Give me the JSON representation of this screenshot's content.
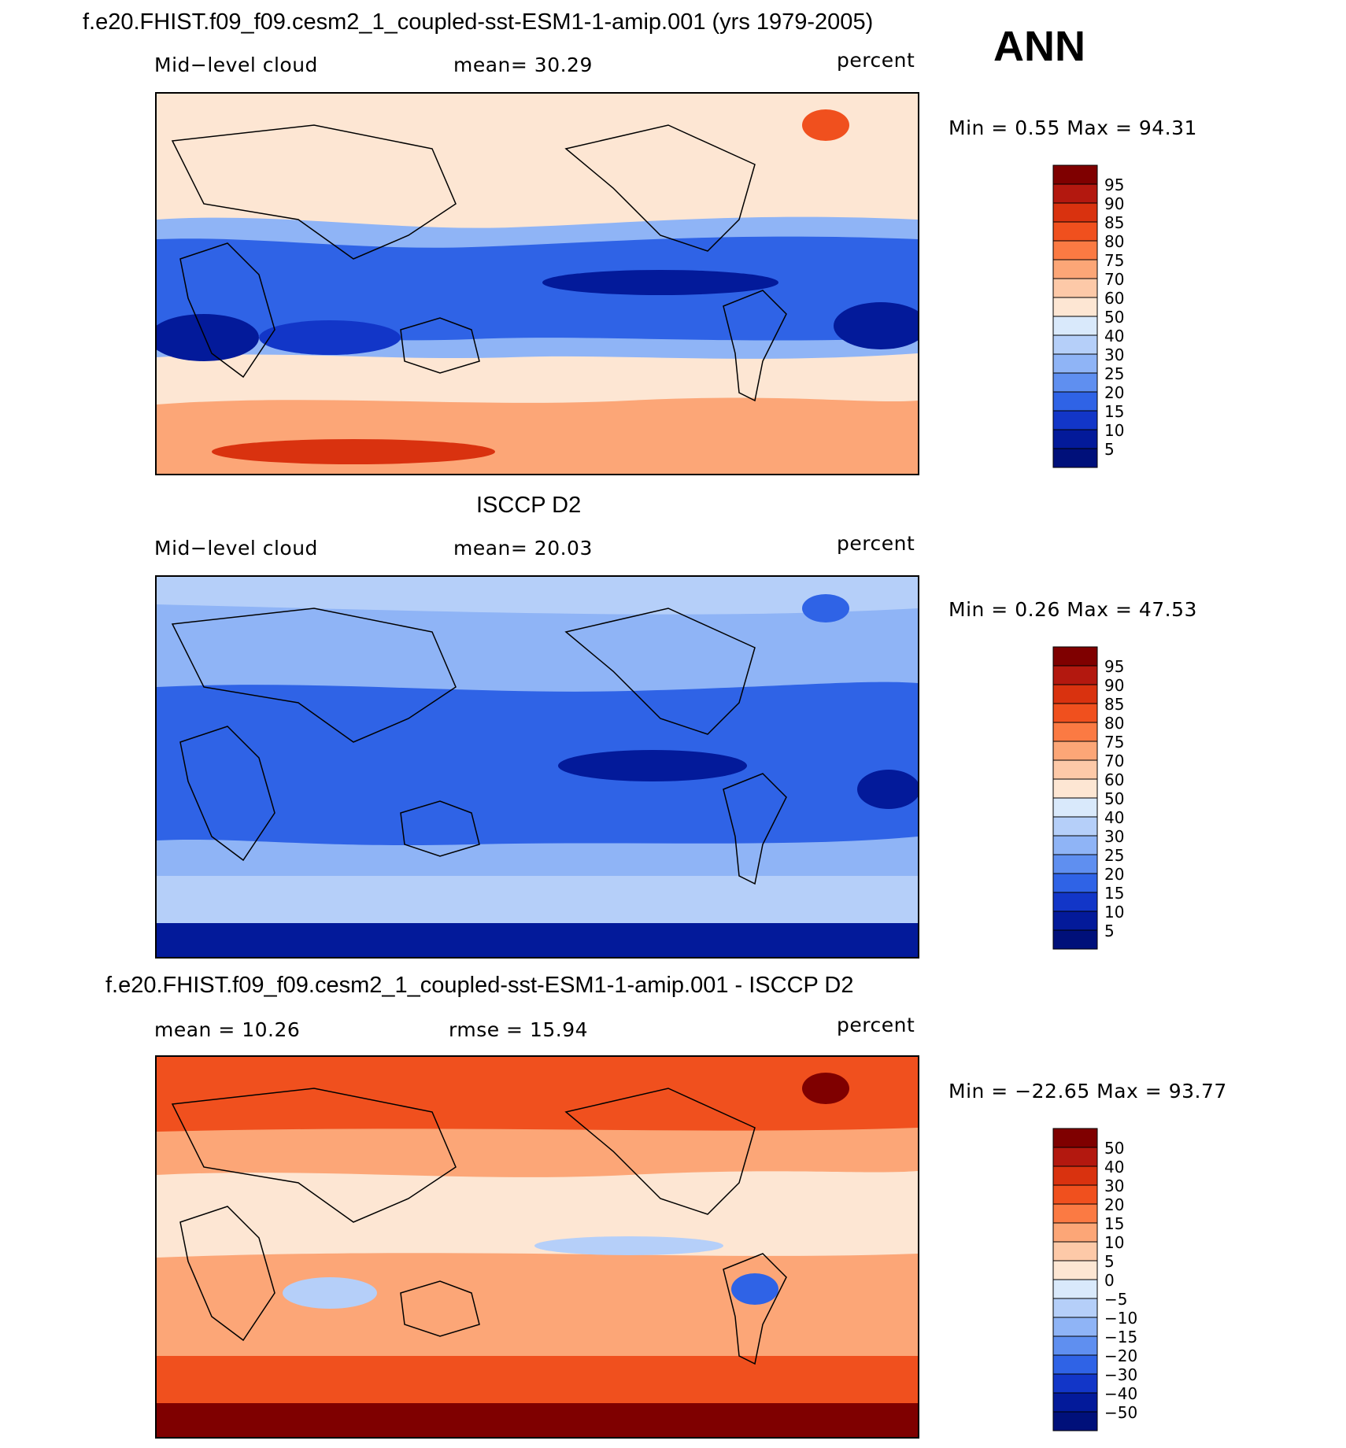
{
  "season": "ANN",
  "panels": [
    {
      "title": "f.e20.FHIST.f09_f09.cesm2_1_coupled-sst-ESM1-1-amip.001 (yrs 1979-2005)",
      "left_label": "Mid−level cloud",
      "mid_label": "mean=   30.29",
      "units": "percent",
      "minmax": "Min =     0.55  Max =    94.31"
    },
    {
      "title": "ISCCP D2",
      "left_label": "Mid−level cloud",
      "mid_label": "mean=   20.03",
      "units": "percent",
      "minmax": "Min =     0.26  Max =    47.53"
    },
    {
      "title": "f.e20.FHIST.f09_f09.cesm2_1_coupled-sst-ESM1-1-amip.001 - ISCCP D2",
      "left_label": "mean =    10.26",
      "mid_label": "rmse =    15.94",
      "units": "percent",
      "minmax": "Min = −22.65  Max =    93.77"
    }
  ],
  "chart_data": [
    {
      "type": "heatmap",
      "title": "f.e20.FHIST.f09_f09.cesm2_1_coupled-sst-ESM1-1-amip.001 (yrs 1979-2005)",
      "variable": "Mid-level cloud",
      "units": "percent",
      "mean": 30.29,
      "min": 0.55,
      "max": 94.31,
      "colorbar_levels": [
        "95",
        "90",
        "85",
        "80",
        "75",
        "70",
        "60",
        "50",
        "40",
        "30",
        "25",
        "20",
        "15",
        "10",
        "5"
      ],
      "colorbar_colors": [
        "#7f0000",
        "#b3180f",
        "#d9320f",
        "#f0501e",
        "#fb7a43",
        "#fca677",
        "#fdc9a8",
        "#fde6d3",
        "#d9e9fb",
        "#b5cff9",
        "#8fb4f6",
        "#5f8ff0",
        "#2f63e6",
        "#1236c8",
        "#031a9a",
        "#00107a"
      ]
    },
    {
      "type": "heatmap",
      "title": "ISCCP D2",
      "variable": "Mid-level cloud",
      "units": "percent",
      "mean": 20.03,
      "min": 0.26,
      "max": 47.53,
      "colorbar_levels": [
        "95",
        "90",
        "85",
        "80",
        "75",
        "70",
        "60",
        "50",
        "40",
        "30",
        "25",
        "20",
        "15",
        "10",
        "5"
      ],
      "colorbar_colors": [
        "#7f0000",
        "#b3180f",
        "#d9320f",
        "#f0501e",
        "#fb7a43",
        "#fca677",
        "#fdc9a8",
        "#fde6d3",
        "#d9e9fb",
        "#b5cff9",
        "#8fb4f6",
        "#5f8ff0",
        "#2f63e6",
        "#1236c8",
        "#031a9a",
        "#00107a"
      ]
    },
    {
      "type": "heatmap",
      "title": "f.e20.FHIST.f09_f09.cesm2_1_coupled-sst-ESM1-1-amip.001 - ISCCP D2",
      "units": "percent",
      "mean": 10.26,
      "rmse": 15.94,
      "min": -22.65,
      "max": 93.77,
      "colorbar_levels": [
        "50",
        "40",
        "30",
        "20",
        "15",
        "10",
        "5",
        "0",
        "−5",
        "−10",
        "−15",
        "−20",
        "−30",
        "−40",
        "−50"
      ],
      "colorbar_colors": [
        "#7f0000",
        "#b3180f",
        "#d9320f",
        "#f0501e",
        "#fb7a43",
        "#fca677",
        "#fdc9a8",
        "#fde6d3",
        "#d9e9fb",
        "#b5cff9",
        "#8fb4f6",
        "#5f8ff0",
        "#2f63e6",
        "#1236c8",
        "#031a9a",
        "#00107a"
      ]
    }
  ]
}
